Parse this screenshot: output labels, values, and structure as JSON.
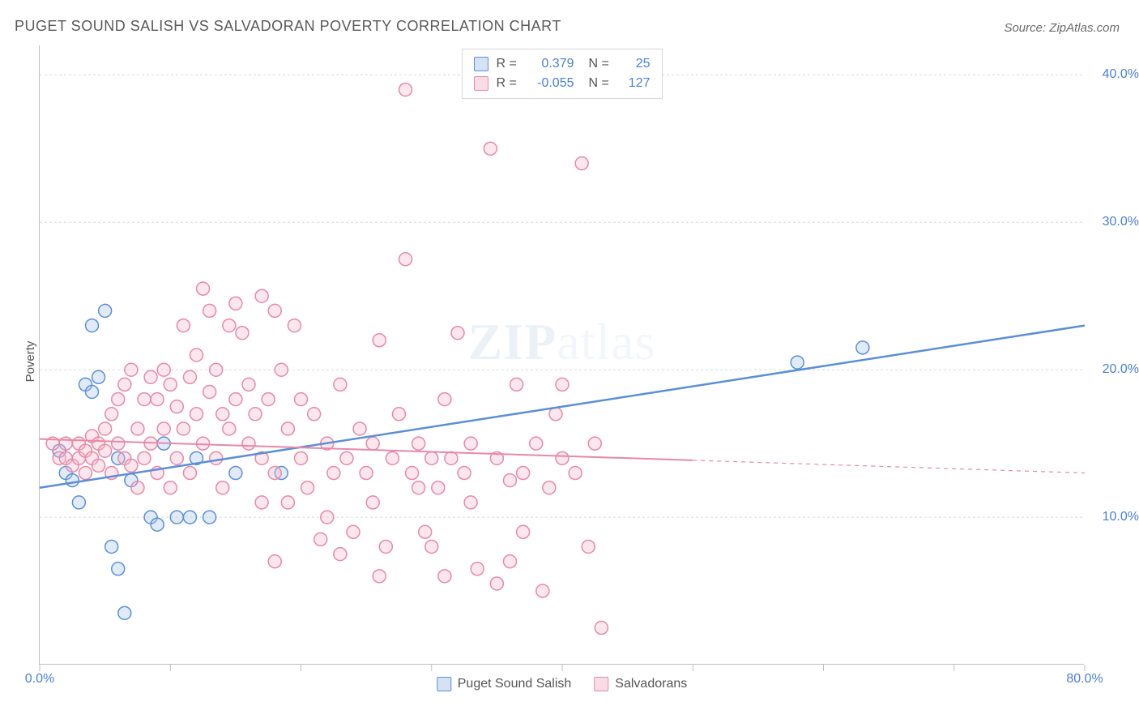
{
  "title": "PUGET SOUND SALISH VS SALVADORAN POVERTY CORRELATION CHART",
  "source": "Source: ZipAtlas.com",
  "y_axis_label": "Poverty",
  "watermark": {
    "bold": "ZIP",
    "rest": "atlas"
  },
  "chart": {
    "type": "scatter",
    "xlim": [
      0,
      80
    ],
    "ylim": [
      0,
      42
    ],
    "x_ticks": [
      0,
      10,
      20,
      30,
      40,
      50,
      60,
      70,
      80
    ],
    "x_tick_labels": {
      "0": "0.0%",
      "80": "80.0%"
    },
    "y_grid": [
      10,
      20,
      30,
      40
    ],
    "y_tick_labels": {
      "10": "10.0%",
      "20": "20.0%",
      "30": "30.0%",
      "40": "40.0%"
    },
    "background_color": "#ffffff",
    "grid_color": "#dcdcdc",
    "axis_color": "#bfbfbf",
    "marker_radius": 8,
    "marker_stroke_width": 1.5,
    "marker_fill_opacity": 0.35,
    "series": [
      {
        "name": "Puget Sound Salish",
        "color_stroke": "#5b8fd6",
        "color_fill": "#a9c5ea",
        "r_label": "0.379",
        "n_label": "25",
        "trend": {
          "x1": 0,
          "y1": 12.0,
          "x2": 80,
          "y2": 23.0,
          "solid_until_x": 80,
          "stroke_width": 2.5
        },
        "points": [
          [
            1.5,
            14.5
          ],
          [
            2,
            13
          ],
          [
            2.5,
            12.5
          ],
          [
            3,
            11
          ],
          [
            3.5,
            19
          ],
          [
            4,
            23
          ],
          [
            4.5,
            19.5
          ],
          [
            5,
            24
          ],
          [
            5.5,
            8
          ],
          [
            6,
            14
          ],
          [
            6,
            6.5
          ],
          [
            6.5,
            3.5
          ],
          [
            7,
            12.5
          ],
          [
            8.5,
            10
          ],
          [
            9,
            9.5
          ],
          [
            9.5,
            15
          ],
          [
            10.5,
            10
          ],
          [
            11.5,
            10
          ],
          [
            12,
            14
          ],
          [
            13,
            10
          ],
          [
            15,
            13
          ],
          [
            18.5,
            13
          ],
          [
            58,
            20.5
          ],
          [
            63,
            21.5
          ],
          [
            4,
            18.5
          ]
        ]
      },
      {
        "name": "Salvadorans",
        "color_stroke": "#e889a7",
        "color_fill": "#f3b9cb",
        "r_label": "-0.055",
        "n_label": "127",
        "trend": {
          "x1": 0,
          "y1": 15.3,
          "x2": 80,
          "y2": 13.0,
          "solid_until_x": 50,
          "stroke_width": 2
        },
        "points": [
          [
            1,
            15
          ],
          [
            1.5,
            14
          ],
          [
            2,
            15
          ],
          [
            2,
            14
          ],
          [
            2.5,
            13.5
          ],
          [
            3,
            15
          ],
          [
            3,
            14
          ],
          [
            3.5,
            14.5
          ],
          [
            3.5,
            13
          ],
          [
            4,
            15.5
          ],
          [
            4,
            14
          ],
          [
            4.5,
            15
          ],
          [
            4.5,
            13.5
          ],
          [
            5,
            16
          ],
          [
            5,
            14.5
          ],
          [
            5.5,
            17
          ],
          [
            5.5,
            13
          ],
          [
            6,
            18
          ],
          [
            6,
            15
          ],
          [
            6.5,
            19
          ],
          [
            6.5,
            14
          ],
          [
            7,
            20
          ],
          [
            7,
            13.5
          ],
          [
            7.5,
            12
          ],
          [
            7.5,
            16
          ],
          [
            8,
            14
          ],
          [
            8,
            18
          ],
          [
            8.5,
            19.5
          ],
          [
            8.5,
            15
          ],
          [
            9,
            18
          ],
          [
            9,
            13
          ],
          [
            9.5,
            20
          ],
          [
            9.5,
            16
          ],
          [
            10,
            19
          ],
          [
            10,
            12
          ],
          [
            10.5,
            17.5
          ],
          [
            10.5,
            14
          ],
          [
            11,
            23
          ],
          [
            11,
            16
          ],
          [
            11.5,
            19.5
          ],
          [
            11.5,
            13
          ],
          [
            12,
            21
          ],
          [
            12,
            17
          ],
          [
            12.5,
            25.5
          ],
          [
            12.5,
            15
          ],
          [
            13,
            18.5
          ],
          [
            13,
            24
          ],
          [
            13.5,
            14
          ],
          [
            13.5,
            20
          ],
          [
            14,
            17
          ],
          [
            14,
            12
          ],
          [
            14.5,
            23
          ],
          [
            14.5,
            16
          ],
          [
            15,
            24.5
          ],
          [
            15,
            18
          ],
          [
            15.5,
            22.5
          ],
          [
            16,
            15
          ],
          [
            16,
            19
          ],
          [
            16.5,
            17
          ],
          [
            17,
            25
          ],
          [
            17,
            14
          ],
          [
            17.5,
            18
          ],
          [
            18,
            24
          ],
          [
            18,
            13
          ],
          [
            18.5,
            20
          ],
          [
            19,
            16
          ],
          [
            19.5,
            23
          ],
          [
            20,
            14
          ],
          [
            20,
            18
          ],
          [
            20.5,
            12
          ],
          [
            21,
            17
          ],
          [
            21.5,
            8.5
          ],
          [
            22,
            15
          ],
          [
            22.5,
            13
          ],
          [
            23,
            19
          ],
          [
            23.5,
            14
          ],
          [
            24,
            9
          ],
          [
            24.5,
            16
          ],
          [
            25,
            13
          ],
          [
            25.5,
            15
          ],
          [
            26,
            22
          ],
          [
            26.5,
            8
          ],
          [
            27,
            14
          ],
          [
            27.5,
            17
          ],
          [
            28,
            27.5
          ],
          [
            28,
            39
          ],
          [
            28.5,
            13
          ],
          [
            29,
            15
          ],
          [
            29.5,
            9
          ],
          [
            30,
            14
          ],
          [
            30.5,
            12
          ],
          [
            31,
            6
          ],
          [
            31.5,
            14
          ],
          [
            32,
            22.5
          ],
          [
            32.5,
            13
          ],
          [
            33,
            15
          ],
          [
            33.5,
            6.5
          ],
          [
            34.5,
            35
          ],
          [
            35,
            14
          ],
          [
            36,
            12.5
          ],
          [
            36.5,
            19
          ],
          [
            37,
            13
          ],
          [
            38,
            15
          ],
          [
            38.5,
            5
          ],
          [
            39,
            12
          ],
          [
            39.5,
            17
          ],
          [
            40,
            14
          ],
          [
            41,
            13
          ],
          [
            41.5,
            34
          ],
          [
            42,
            8
          ],
          [
            42.5,
            15
          ],
          [
            43,
            2.5
          ],
          [
            35,
            5.5
          ],
          [
            36,
            7
          ],
          [
            26,
            6
          ],
          [
            22,
            10
          ],
          [
            23,
            7.5
          ],
          [
            29,
            12
          ],
          [
            31,
            18
          ],
          [
            33,
            11
          ],
          [
            19,
            11
          ],
          [
            17,
            11
          ],
          [
            25.5,
            11
          ],
          [
            18,
            7
          ],
          [
            30,
            8
          ],
          [
            37,
            9
          ],
          [
            40,
            19
          ]
        ]
      }
    ]
  },
  "legend_bottom": [
    {
      "label": "Puget Sound Salish",
      "stroke": "#5b8fd6",
      "fill": "#a9c5ea"
    },
    {
      "label": "Salvadorans",
      "stroke": "#e889a7",
      "fill": "#f3b9cb"
    }
  ]
}
